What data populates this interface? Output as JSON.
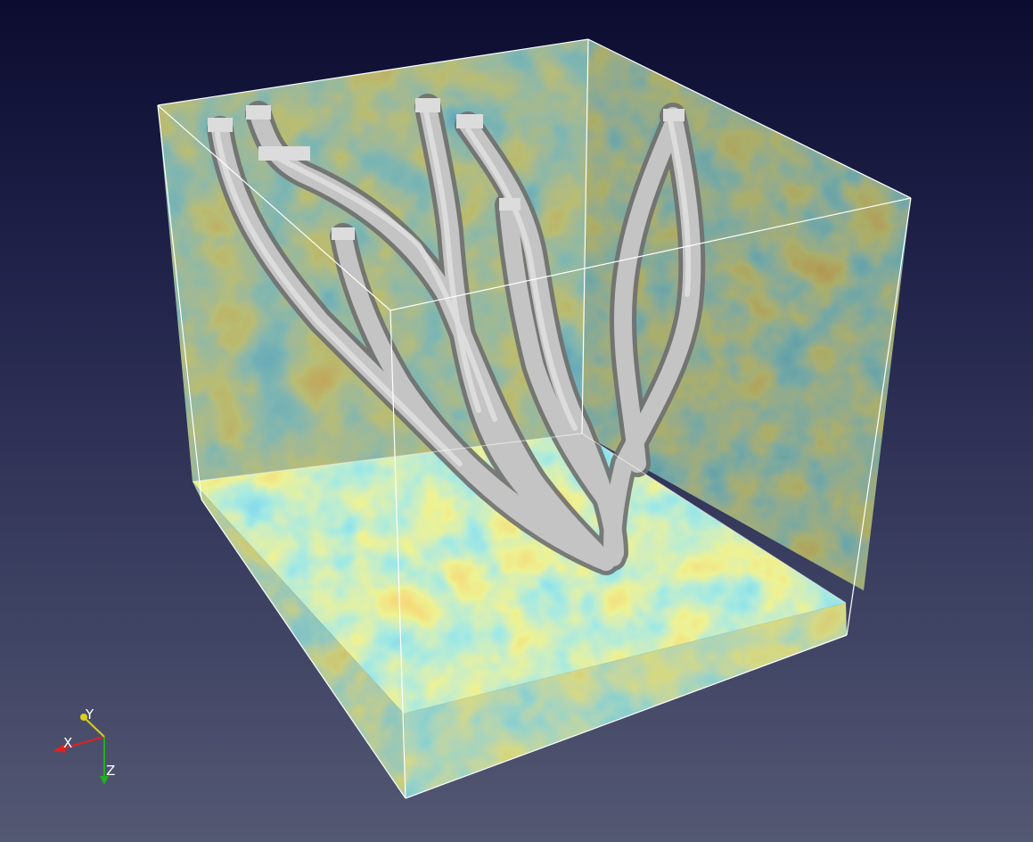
{
  "viewport": {
    "background_top": "#0c0c30",
    "background_bottom": "#535873",
    "content": "volume-rendering"
  },
  "orientation_axes": {
    "x": {
      "label": "X",
      "color": "#e02020"
    },
    "y": {
      "label": "Y",
      "color": "#d9cf20"
    },
    "z": {
      "label": "Z",
      "color": "#20b020"
    }
  },
  "colormap": [
    "#1a2fb0",
    "#2aa7e0",
    "#5fd1c4",
    "#d9e24a",
    "#f0a02a",
    "#c8281c"
  ],
  "isosurface_color": "#b4b4b4",
  "outline_color": "#ffffff"
}
